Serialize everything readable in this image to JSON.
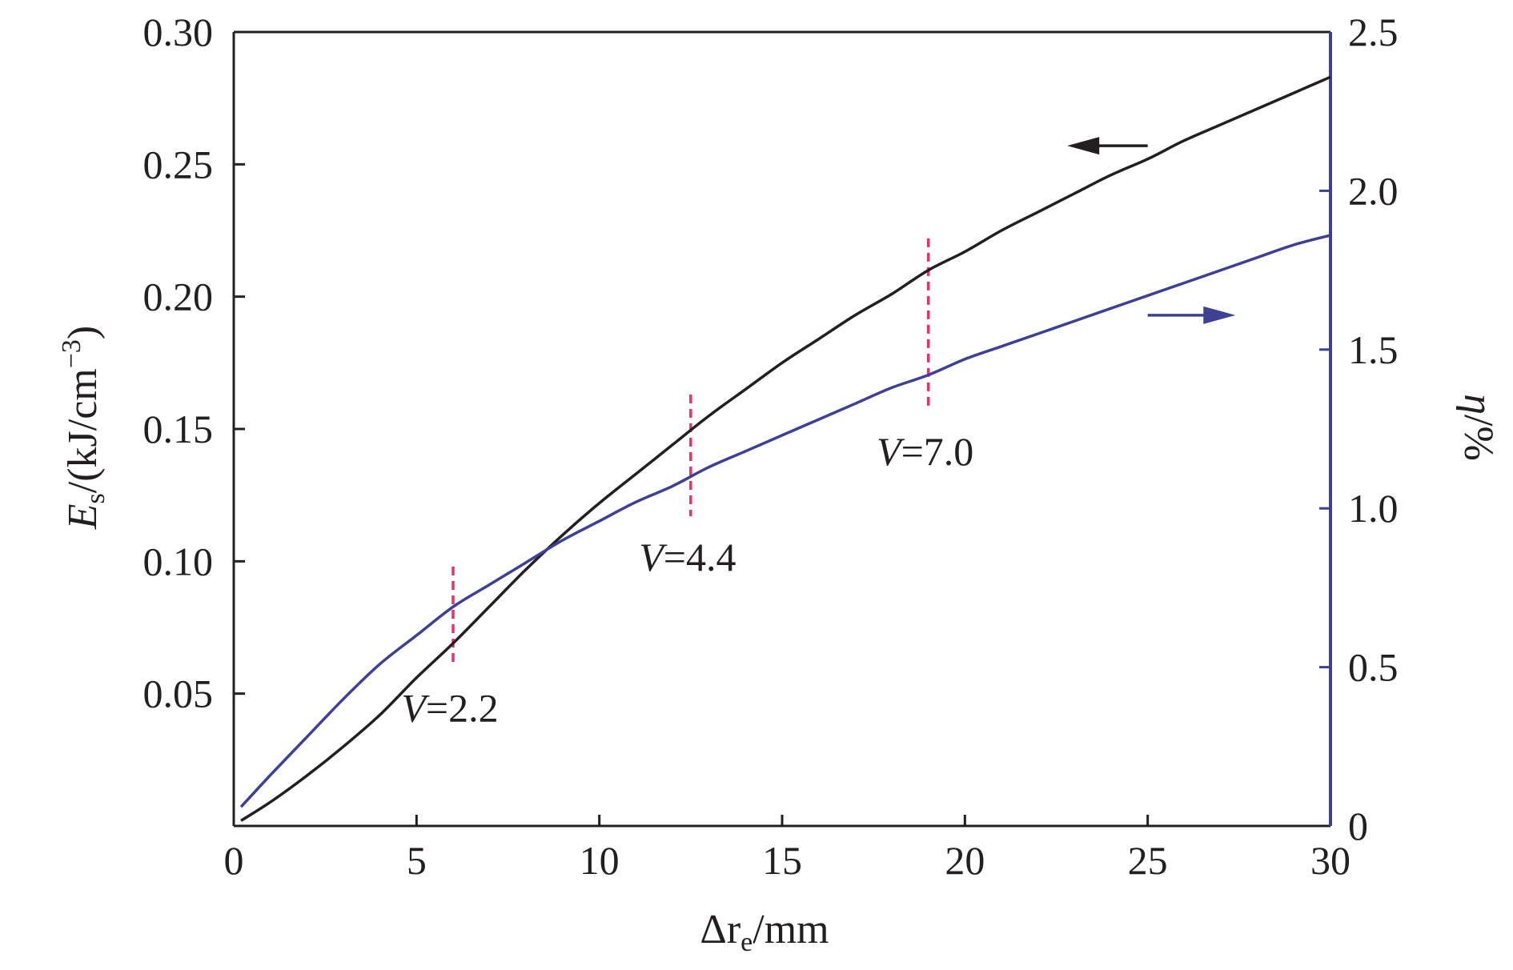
{
  "chart_data": {
    "type": "line",
    "x_axis": {
      "label_main": "Δr",
      "label_sub": "e",
      "label_unit": "/mm",
      "range": [
        0,
        30
      ],
      "ticks": [
        0,
        5,
        10,
        15,
        20,
        25,
        30
      ],
      "tick_labels": [
        "0",
        "5",
        "10",
        "15",
        "20",
        "25",
        "30"
      ]
    },
    "y_left": {
      "label_main": "E",
      "label_sub": "s",
      "label_unit": "/(kJ/cm",
      "label_exp": "−3",
      "label_close": ")",
      "range": [
        0,
        0.3
      ],
      "ticks": [
        0.05,
        0.1,
        0.15,
        0.2,
        0.25,
        0.3
      ],
      "tick_labels": [
        "0.05",
        "0.10",
        "0.15",
        "0.20",
        "0.25",
        "0.30"
      ]
    },
    "y_right": {
      "label_main": "η",
      "label_unit": "/%",
      "range": [
        0,
        2.5
      ],
      "ticks": [
        0,
        0.5,
        1.0,
        1.5,
        2.0,
        2.5
      ],
      "tick_labels": [
        "0",
        "0.5",
        "1.0",
        "1.5",
        "2.0",
        "2.5"
      ]
    },
    "series": [
      {
        "axis": "left",
        "color": "#231f20",
        "x": [
          0.2,
          1,
          2,
          3,
          4,
          5,
          6,
          7,
          8,
          9,
          10,
          11,
          12,
          13,
          14,
          15,
          16,
          17,
          18,
          19,
          20,
          21,
          22,
          23,
          24,
          25,
          26,
          27,
          28,
          29,
          30
        ],
        "y": [
          0.002,
          0.009,
          0.019,
          0.03,
          0.042,
          0.056,
          0.069,
          0.083,
          0.097,
          0.11,
          0.122,
          0.133,
          0.144,
          0.155,
          0.165,
          0.175,
          0.184,
          0.193,
          0.201,
          0.21,
          0.217,
          0.225,
          0.232,
          0.239,
          0.246,
          0.252,
          0.259,
          0.265,
          0.271,
          0.277,
          0.283
        ]
      },
      {
        "axis": "right",
        "color": "#3e4095",
        "x": [
          0.2,
          1,
          2,
          3,
          4,
          5,
          6,
          7,
          8,
          9,
          10,
          11,
          12,
          13,
          14,
          15,
          16,
          17,
          18,
          19,
          20,
          21,
          22,
          23,
          24,
          25,
          26,
          27,
          28,
          29,
          30
        ],
        "y": [
          0.06,
          0.16,
          0.28,
          0.4,
          0.51,
          0.6,
          0.69,
          0.76,
          0.83,
          0.9,
          0.96,
          1.02,
          1.07,
          1.13,
          1.18,
          1.23,
          1.28,
          1.33,
          1.38,
          1.42,
          1.47,
          1.51,
          1.55,
          1.59,
          1.63,
          1.67,
          1.71,
          1.75,
          1.79,
          1.83,
          1.86
        ]
      }
    ],
    "markers": [
      {
        "x": 6.0,
        "y_top": 0.098,
        "y_bottom": 0.06,
        "label_var": "V",
        "label_value": "=2.2",
        "color": "#e2336b"
      },
      {
        "x": 12.5,
        "y_top": 0.163,
        "y_bottom": 0.117,
        "label_var": "V",
        "label_value": "=4.4",
        "color": "#e2336b"
      },
      {
        "x": 19.0,
        "y_top": 0.222,
        "y_bottom": 0.157,
        "label_var": "V",
        "label_value": "=7.0",
        "color": "#e2336b"
      }
    ],
    "arrows": [
      {
        "direction": "left",
        "points_to": "left-axis",
        "color": "#231f20",
        "x_from": 25.0,
        "x_to": 22.8,
        "y_left": 0.257
      },
      {
        "direction": "right",
        "points_to": "right-axis",
        "color": "#3e4095",
        "x_from": 25.0,
        "x_to": 27.4,
        "y_left": 0.193
      }
    ],
    "colors": {
      "axis_left": "#231f20",
      "axis_right": "#3e4095",
      "marker": "#e2336b"
    },
    "grid": false,
    "legend": "none"
  }
}
